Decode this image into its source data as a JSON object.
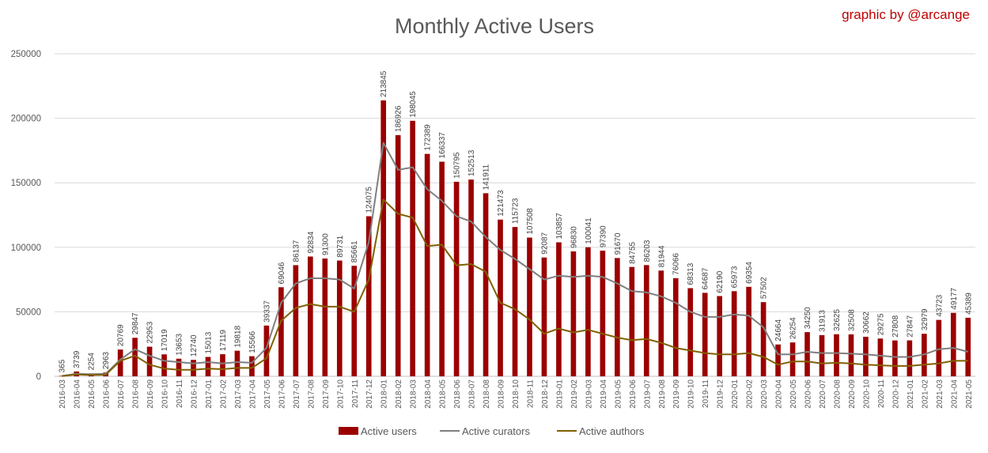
{
  "chart_data": {
    "type": "bar",
    "title": "Monthly Active Users",
    "credit": "graphic by @arcange",
    "xlabel": "",
    "ylabel": "",
    "ylim": [
      0,
      250000
    ],
    "yticks": [
      0,
      50000,
      100000,
      150000,
      200000,
      250000
    ],
    "grid": true,
    "legend_position": "bottom",
    "categories": [
      "2016-03",
      "2016-04",
      "2016-05",
      "2016-06",
      "2016-07",
      "2016-08",
      "2016-09",
      "2016-10",
      "2016-11",
      "2016-12",
      "2017-01",
      "2017-02",
      "2017-03",
      "2017-04",
      "2017-05",
      "2017-06",
      "2017-07",
      "2017-08",
      "2017-09",
      "2017-10",
      "2017-11",
      "2017-12",
      "2018-01",
      "2018-02",
      "2018-03",
      "2018-04",
      "2018-05",
      "2018-06",
      "2018-07",
      "2018-08",
      "2018-09",
      "2018-10",
      "2018-11",
      "2018-12",
      "2019-01",
      "2019-02",
      "2019-03",
      "2019-04",
      "2019-05",
      "2019-06",
      "2019-07",
      "2019-08",
      "2019-09",
      "2019-10",
      "2019-11",
      "2019-12",
      "2020-01",
      "2020-02",
      "2020-03",
      "2020-04",
      "2020-05",
      "2020-06",
      "2020-07",
      "2020-08",
      "2020-09",
      "2020-10",
      "2020-11",
      "2020-12",
      "2021-01",
      "2021-02",
      "2021-03",
      "2021-04",
      "2021-05"
    ],
    "series": [
      {
        "name": "Active users",
        "kind": "bar",
        "color": "#9b0000",
        "values": [
          365,
          3739,
          2254,
          2963,
          20769,
          29847,
          22953,
          17019,
          13653,
          12740,
          15013,
          17119,
          19818,
          15566,
          39337,
          69046,
          86137,
          92834,
          91300,
          89731,
          85661,
          124075,
          213845,
          186926,
          198045,
          172389,
          166337,
          150795,
          152513,
          141911,
          121473,
          115723,
          107508,
          92087,
          103857,
          96830,
          100041,
          97390,
          91670,
          84755,
          86203,
          81944,
          76066,
          68313,
          64687,
          62190,
          65973,
          69354,
          57502,
          24664,
          26254,
          34250,
          31913,
          32625,
          32508,
          30662,
          29275,
          27808,
          27847,
          32979,
          43723,
          49177,
          45389
        ]
      },
      {
        "name": "Active curators",
        "kind": "line",
        "color": "#7f7f7f",
        "values": [
          300,
          2000,
          1600,
          2000,
          13000,
          21000,
          16000,
          12000,
          11000,
          10000,
          11000,
          10000,
          11000,
          10500,
          22000,
          57000,
          72000,
          76000,
          76000,
          75000,
          68000,
          104000,
          181000,
          160000,
          162000,
          145000,
          136000,
          124000,
          120000,
          108000,
          98000,
          91000,
          83000,
          75000,
          78000,
          77000,
          78000,
          77000,
          72000,
          66000,
          65000,
          62000,
          57000,
          50000,
          46000,
          46000,
          48000,
          47000,
          38000,
          17000,
          17000,
          19000,
          18000,
          18000,
          17500,
          17000,
          16000,
          15000,
          15000,
          17000,
          21000,
          22000,
          19000
        ]
      },
      {
        "name": "Active authors",
        "kind": "line",
        "color": "#806000",
        "values": [
          200,
          1500,
          1000,
          1200,
          12000,
          16000,
          9000,
          6000,
          5000,
          5000,
          6000,
          5500,
          6500,
          6500,
          14000,
          43000,
          53000,
          56000,
          54000,
          54000,
          50000,
          75000,
          137000,
          126000,
          123000,
          101000,
          102000,
          86000,
          87000,
          81000,
          57000,
          52000,
          44000,
          33000,
          37000,
          34000,
          36000,
          33000,
          30000,
          28000,
          29000,
          26000,
          22000,
          20000,
          18000,
          17000,
          17000,
          18000,
          15000,
          9000,
          11500,
          11500,
          10000,
          10500,
          10000,
          9000,
          8500,
          8000,
          8000,
          9000,
          10000,
          12000,
          12000
        ]
      }
    ]
  }
}
